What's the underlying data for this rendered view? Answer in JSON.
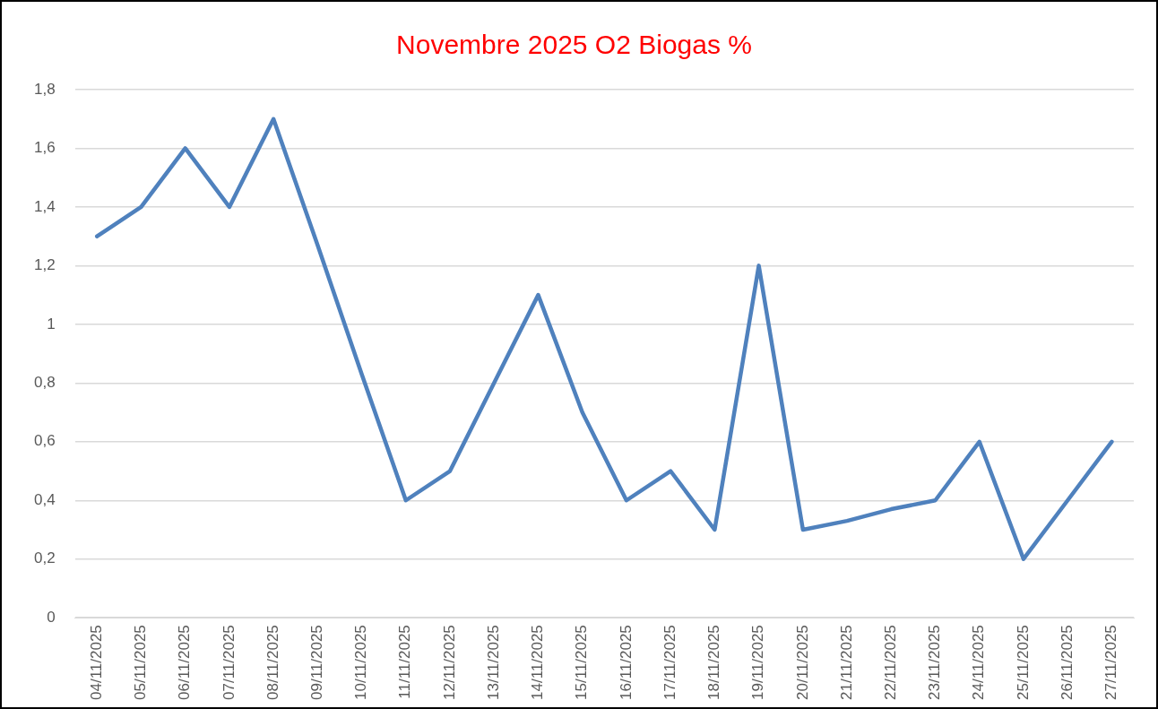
{
  "chart_data": {
    "type": "line",
    "title": "Novembre 2025 O2 Biogas %",
    "categories": [
      "04/11/2025",
      "05/11/2025",
      "06/11/2025",
      "07/11/2025",
      "08/11/2025",
      "09/11/2025",
      "10/11/2025",
      "11/11/2025",
      "12/11/2025",
      "13/11/2025",
      "14/11/2025",
      "15/11/2025",
      "16/11/2025",
      "17/11/2025",
      "18/11/2025",
      "19/11/2025",
      "20/11/2025",
      "21/11/2025",
      "22/11/2025",
      "23/11/2025",
      "24/11/2025",
      "25/11/2025",
      "26/11/2025",
      "27/11/2025"
    ],
    "series": [
      {
        "color": "#4f81bd",
        "values": [
          1.3,
          1.4,
          1.6,
          1.4,
          1.7,
          1.27,
          0.83,
          0.4,
          0.5,
          0.8,
          1.1,
          0.7,
          0.4,
          0.5,
          0.3,
          1.2,
          0.3,
          0.33,
          0.37,
          0.4,
          0.6,
          0.2,
          0.4,
          0.6
        ]
      }
    ],
    "ylim": [
      0,
      1.8
    ],
    "yticks": [
      0,
      {
        "value": 0.2,
        "label": "0,2"
      },
      {
        "value": 0.4,
        "label": "0,4"
      },
      {
        "value": 0.6,
        "label": "0,6"
      },
      {
        "value": 0.8,
        "label": "0,8"
      },
      1,
      {
        "value": 1.2,
        "label": "1,2"
      },
      {
        "value": 1.4,
        "label": "1,4"
      },
      {
        "value": 1.6,
        "label": "1,6"
      },
      {
        "value": 1.8,
        "label": "1,8"
      }
    ],
    "grid": "y",
    "legend": false,
    "marker": "none",
    "line_style": "solid"
  }
}
